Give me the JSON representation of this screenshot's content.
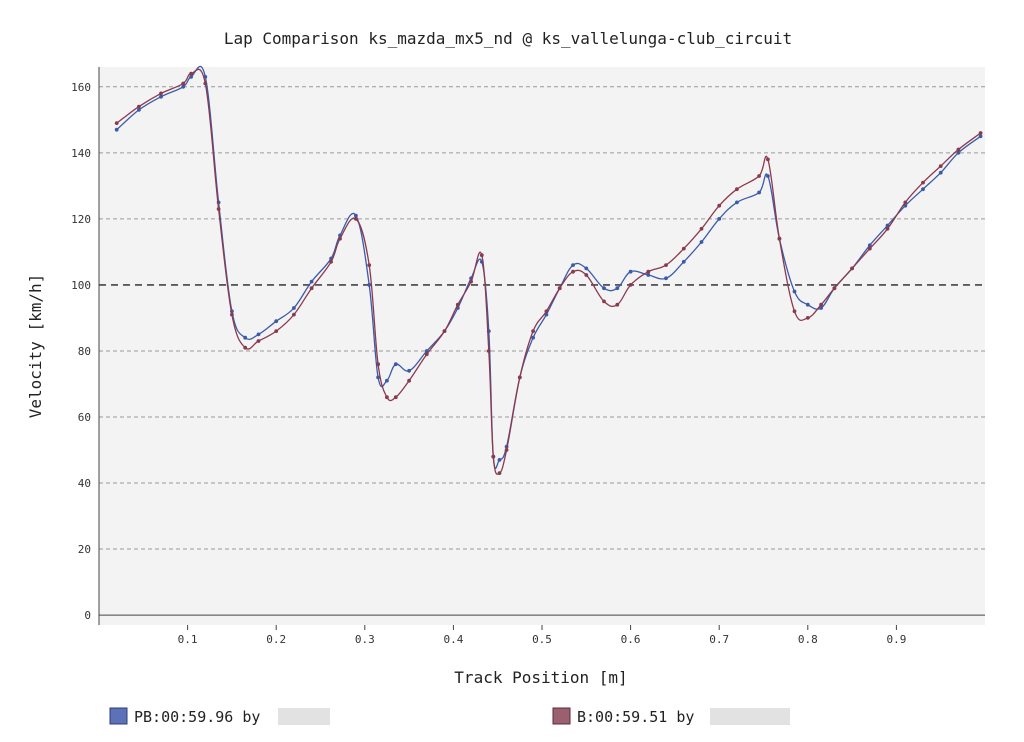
{
  "chart_data": {
    "type": "line",
    "title": "Lap Comparison ks_mazda_mx5_nd @ ks_vallelunga-club_circuit",
    "xlabel": "Track Position [m]",
    "ylabel": "Velocity [km/h]",
    "xlim": [
      0,
      1.0
    ],
    "ylim": [
      -3,
      166
    ],
    "xticks": [
      "0.1",
      "0.2",
      "0.3",
      "0.4",
      "0.5",
      "0.6",
      "0.7",
      "0.8",
      "0.9"
    ],
    "yticks": [
      "0",
      "20",
      "40",
      "60",
      "80",
      "100",
      "120",
      "140",
      "160"
    ],
    "grid": "horizontal-dashed",
    "reference_line": 100,
    "legend_position": "bottom",
    "series": [
      {
        "name": "PB:00:59.96 by",
        "color": "#3a5ba9",
        "x": [
          0.02,
          0.045,
          0.07,
          0.095,
          0.104,
          0.12,
          0.135,
          0.15,
          0.165,
          0.18,
          0.2,
          0.22,
          0.24,
          0.262,
          0.272,
          0.29,
          0.305,
          0.315,
          0.325,
          0.335,
          0.35,
          0.37,
          0.39,
          0.405,
          0.42,
          0.432,
          0.44,
          0.445,
          0.452,
          0.46,
          0.475,
          0.49,
          0.505,
          0.52,
          0.535,
          0.55,
          0.57,
          0.585,
          0.6,
          0.62,
          0.64,
          0.66,
          0.68,
          0.7,
          0.72,
          0.745,
          0.755,
          0.768,
          0.785,
          0.8,
          0.815,
          0.83,
          0.85,
          0.87,
          0.89,
          0.91,
          0.93,
          0.95,
          0.97,
          0.995
        ],
        "y": [
          147,
          153,
          157,
          160,
          163,
          163,
          125,
          92,
          84,
          85,
          89,
          93,
          101,
          108,
          115,
          121,
          100,
          72,
          71,
          76,
          74,
          80,
          86,
          93,
          102,
          107,
          86,
          48,
          47,
          51,
          72,
          84,
          91,
          99,
          106,
          105,
          99,
          99,
          104,
          103,
          102,
          107,
          113,
          120,
          125,
          128,
          133,
          114,
          98,
          94,
          93,
          99,
          105,
          112,
          118,
          124,
          129,
          134,
          140,
          145
        ]
      },
      {
        "name": "B:00:59.51 by",
        "color": "#8b3a4e",
        "x": [
          0.02,
          0.045,
          0.07,
          0.095,
          0.104,
          0.12,
          0.135,
          0.15,
          0.165,
          0.18,
          0.2,
          0.22,
          0.24,
          0.262,
          0.272,
          0.29,
          0.305,
          0.315,
          0.325,
          0.335,
          0.35,
          0.37,
          0.39,
          0.405,
          0.42,
          0.432,
          0.44,
          0.445,
          0.452,
          0.46,
          0.475,
          0.49,
          0.505,
          0.52,
          0.535,
          0.55,
          0.57,
          0.585,
          0.6,
          0.62,
          0.64,
          0.66,
          0.68,
          0.7,
          0.72,
          0.745,
          0.755,
          0.768,
          0.785,
          0.8,
          0.815,
          0.83,
          0.85,
          0.87,
          0.89,
          0.91,
          0.93,
          0.95,
          0.97,
          0.995
        ],
        "y": [
          149,
          154,
          158,
          161,
          164,
          161,
          123,
          91,
          81,
          83,
          86,
          91,
          99,
          107,
          114,
          120,
          106,
          76,
          66,
          66,
          71,
          79,
          86,
          94,
          101,
          109,
          80,
          48,
          43,
          50,
          72,
          86,
          92,
          99,
          104,
          103,
          95,
          94,
          100,
          104,
          106,
          111,
          117,
          124,
          129,
          133,
          138,
          114,
          92,
          90,
          94,
          99,
          105,
          111,
          117,
          125,
          131,
          136,
          141,
          146
        ]
      }
    ]
  },
  "legend": {
    "items": [
      {
        "label": "PB:00:59.96 by",
        "color": "#5b72b7"
      },
      {
        "label": "B:00:59.51 by",
        "color": "#9b6070"
      }
    ]
  }
}
